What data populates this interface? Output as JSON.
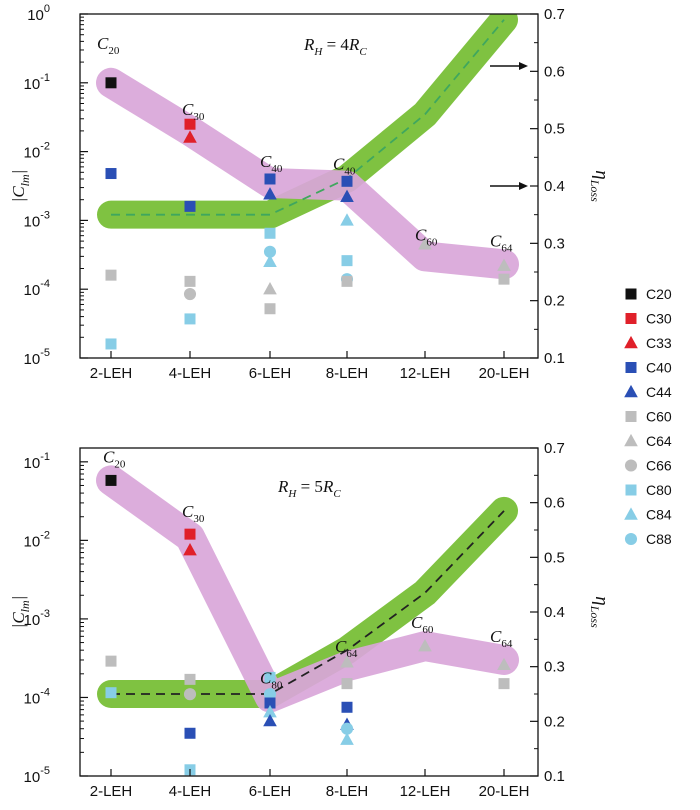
{
  "chart_data": [
    {
      "type": "scatter",
      "categories": [
        "2-LEH",
        "4-LEH",
        "6-LEH",
        "8-LEH",
        "12-LEH",
        "20-LEH"
      ],
      "ylabel_main": "|C",
      "ylabel_sub": "lm",
      "ylabel_end": "|",
      "y2label_main": "η",
      "y2label_sub": "Loss",
      "yscale": "log",
      "ylim": [
        1e-05,
        1
      ],
      "yticks": [
        {
          "m": "10",
          "e": "-5",
          "v": 1e-05
        },
        {
          "m": "10",
          "e": "-4",
          "v": 0.0001
        },
        {
          "m": "10",
          "e": "-3",
          "v": 0.001
        },
        {
          "m": "10",
          "e": "-2",
          "v": 0.01
        },
        {
          "m": "10",
          "e": "-1",
          "v": 0.1
        },
        {
          "m": "10",
          "e": "0",
          "v": 1
        }
      ],
      "y2lim": [
        0.1,
        0.7
      ],
      "y2ticks": [
        "0.1",
        "0.2",
        "0.3",
        "0.4",
        "0.5",
        "0.6",
        "0.7"
      ],
      "condition": {
        "main1": "R",
        "sub1": "H",
        "mid": " = 4",
        "main2": "R",
        "sub2": "C"
      },
      "dominant_path": [
        0.1,
        0.02,
        0.0035,
        0.0032,
        0.0003,
        0.00023
      ],
      "dominant_labels": [
        {
          "x": 0,
          "c": "C",
          "sub": "20"
        },
        {
          "x": 1,
          "c": "C",
          "sub": "30"
        },
        {
          "x": 2,
          "c": "C",
          "sub": "40"
        },
        {
          "x": 3,
          "c": "C",
          "sub": "40"
        },
        {
          "x": 4,
          "c": "C",
          "sub": "60"
        },
        {
          "x": 5,
          "c": "C",
          "sub": "64"
        }
      ],
      "eta": [
        0.35,
        0.35,
        0.35,
        0.413,
        0.525,
        0.69
      ],
      "points": [
        {
          "s": "C20",
          "x": 0,
          "y": 0.1
        },
        {
          "s": "C30",
          "x": 1,
          "y": 0.025
        },
        {
          "s": "C33",
          "x": 1,
          "y": 0.016
        },
        {
          "s": "C40",
          "x": 0,
          "y": 0.0048
        },
        {
          "s": "C40",
          "x": 1,
          "y": 0.0016
        },
        {
          "s": "C40",
          "x": 2,
          "y": 0.004
        },
        {
          "s": "C44",
          "x": 2,
          "y": 0.0024
        },
        {
          "s": "C40",
          "x": 3,
          "y": 0.0037
        },
        {
          "s": "C44",
          "x": 3,
          "y": 0.0022
        },
        {
          "s": "C60",
          "x": 0,
          "y": 0.00016
        },
        {
          "s": "C60",
          "x": 1,
          "y": 0.00013
        },
        {
          "s": "C66",
          "x": 1,
          "y": 8.5e-05
        },
        {
          "s": "C80",
          "x": 1,
          "y": 3.7e-05
        },
        {
          "s": "C80",
          "x": 0,
          "y": 1.6e-05
        },
        {
          "s": "C80",
          "x": 2,
          "y": 0.00065
        },
        {
          "s": "C88",
          "x": 2,
          "y": 0.00035
        },
        {
          "s": "C84",
          "x": 2,
          "y": 0.00025
        },
        {
          "s": "C64",
          "x": 2,
          "y": 0.0001
        },
        {
          "s": "C60",
          "x": 2,
          "y": 5.2e-05
        },
        {
          "s": "C84",
          "x": 3,
          "y": 0.001
        },
        {
          "s": "C80",
          "x": 3,
          "y": 0.00026
        },
        {
          "s": "C88",
          "x": 3,
          "y": 0.00014
        },
        {
          "s": "C60",
          "x": 3,
          "y": 0.00013
        },
        {
          "s": "C64",
          "x": 4,
          "y": 0.00045
        },
        {
          "s": "C60",
          "x": 5,
          "y": 0.00014
        },
        {
          "s": "C64",
          "x": 5,
          "y": 0.00022
        }
      ]
    },
    {
      "type": "scatter",
      "categories": [
        "2-LEH",
        "4-LEH",
        "6-LEH",
        "8-LEH",
        "12-LEH",
        "20-LEH"
      ],
      "ylabel_main": "|C",
      "ylabel_sub": "lm",
      "ylabel_end": "|",
      "y2label_main": "η",
      "y2label_sub": "Loss",
      "yscale": "log",
      "ylim": [
        1e-05,
        0.15
      ],
      "yticks": [
        {
          "m": "10",
          "e": "-5",
          "v": 1e-05
        },
        {
          "m": "10",
          "e": "-4",
          "v": 0.0001
        },
        {
          "m": "10",
          "e": "-3",
          "v": 0.001
        },
        {
          "m": "10",
          "e": "-2",
          "v": 0.01
        },
        {
          "m": "10",
          "e": "-1",
          "v": 0.1
        }
      ],
      "y2lim": [
        0.1,
        0.7
      ],
      "y2ticks": [
        "0.1",
        "0.2",
        "0.3",
        "0.4",
        "0.5",
        "0.6",
        "0.7"
      ],
      "condition": {
        "main1": "R",
        "sub1": "H",
        "mid": " = 5",
        "main2": "R",
        "sub2": "C"
      },
      "dominant_path": [
        0.058,
        0.011,
        0.0001,
        0.00025,
        0.00045,
        0.0003
      ],
      "dominant_labels": [
        {
          "x": 0,
          "c": "C",
          "sub": "20"
        },
        {
          "x": 1,
          "c": "C",
          "sub": "30"
        },
        {
          "x": 2,
          "c": "C",
          "sub": "80"
        },
        {
          "x": 3,
          "c": "C",
          "sub": "64"
        },
        {
          "x": 4,
          "c": "C",
          "sub": "60"
        },
        {
          "x": 5,
          "c": "C",
          "sub": "64"
        }
      ],
      "eta": [
        0.25,
        0.25,
        0.25,
        0.33,
        0.435,
        0.585
      ],
      "points": [
        {
          "s": "C20",
          "x": 0,
          "y": 0.058
        },
        {
          "s": "C30",
          "x": 1,
          "y": 0.012
        },
        {
          "s": "C33",
          "x": 1,
          "y": 0.0075
        },
        {
          "s": "C60",
          "x": 0,
          "y": 0.00029
        },
        {
          "s": "C80",
          "x": 0,
          "y": 0.000115
        },
        {
          "s": "C60",
          "x": 1,
          "y": 0.00017
        },
        {
          "s": "C66",
          "x": 1,
          "y": 0.00011
        },
        {
          "s": "C40",
          "x": 1,
          "y": 3.5e-05
        },
        {
          "s": "C80",
          "x": 1,
          "y": 1.2e-05
        },
        {
          "s": "C80",
          "x": 2,
          "y": 0.00018
        },
        {
          "s": "C88",
          "x": 2,
          "y": 0.00011
        },
        {
          "s": "C40",
          "x": 2,
          "y": 8.5e-05
        },
        {
          "s": "C84",
          "x": 2,
          "y": 6.5e-05
        },
        {
          "s": "C44",
          "x": 2,
          "y": 5e-05
        },
        {
          "s": "C64",
          "x": 3,
          "y": 0.00028
        },
        {
          "s": "C60",
          "x": 3,
          "y": 0.00015
        },
        {
          "s": "C40",
          "x": 3,
          "y": 7.5e-05
        },
        {
          "s": "C44",
          "x": 3,
          "y": 4.5e-05
        },
        {
          "s": "C88",
          "x": 3,
          "y": 4e-05
        },
        {
          "s": "C84",
          "x": 3,
          "y": 2.9e-05
        },
        {
          "s": "C64",
          "x": 4,
          "y": 0.00045
        },
        {
          "s": "C64",
          "x": 5,
          "y": 0.00026
        },
        {
          "s": "C60",
          "x": 5,
          "y": 0.00015
        }
      ]
    }
  ],
  "legend": [
    {
      "label": "C20",
      "shape": "square",
      "color": "#111111"
    },
    {
      "label": "C30",
      "shape": "square",
      "color": "#e0202a"
    },
    {
      "label": "C33",
      "shape": "triangle",
      "color": "#e0202a"
    },
    {
      "label": "C40",
      "shape": "square",
      "color": "#2a4fb5"
    },
    {
      "label": "C44",
      "shape": "triangle",
      "color": "#2a4fb5"
    },
    {
      "label": "C60",
      "shape": "square",
      "color": "#bdbdbd"
    },
    {
      "label": "C64",
      "shape": "triangle",
      "color": "#bdbdbd"
    },
    {
      "label": "C66",
      "shape": "circle",
      "color": "#bdbdbd"
    },
    {
      "label": "C80",
      "shape": "square",
      "color": "#87cde6"
    },
    {
      "label": "C84",
      "shape": "triangle",
      "color": "#87cde6"
    },
    {
      "label": "C88",
      "shape": "circle",
      "color": "#87cde6"
    }
  ],
  "colors": {
    "dominant_band": "#d9a6d9",
    "eta_band": "#7fc241",
    "eta_line_top": "#3fa75e",
    "eta_line_bottom": "#222222",
    "arrow": "#111111"
  }
}
